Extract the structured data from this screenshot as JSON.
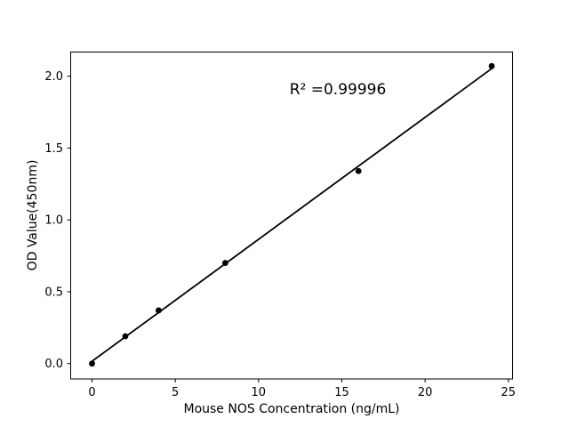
{
  "chart_data": {
    "type": "scatter",
    "title": "",
    "xlabel": "Mouse NOS Concentration (ng/mL)",
    "ylabel": "OD Value(450nm)",
    "annotation": {
      "text": "R² =0.99996",
      "x": 14.76,
      "y": 1.9
    },
    "x": [
      0,
      2,
      4,
      8,
      16,
      24
    ],
    "y": [
      0.0,
      0.19,
      0.37,
      0.7,
      1.34,
      2.07
    ],
    "fit_line": {
      "x": [
        0,
        24
      ],
      "y": [
        0.016,
        2.053
      ]
    },
    "xlim": [
      -1.28,
      25.25
    ],
    "ylim": [
      -0.107,
      2.168
    ],
    "xticks": [
      0,
      5,
      10,
      15,
      20,
      25
    ],
    "xtick_labels": [
      "0",
      "5",
      "10",
      "15",
      "20",
      "25"
    ],
    "yticks": [
      0.0,
      0.5,
      1.0,
      1.5,
      2.0
    ],
    "ytick_labels": [
      "0.0",
      "0.5",
      "1.0",
      "1.5",
      "2.0"
    ],
    "grid": false,
    "legend": null,
    "marker_color": "#000000",
    "line_color": "#000000",
    "axis_color": "#000000",
    "text_color": "#000000",
    "background_color": "#ffffff"
  }
}
